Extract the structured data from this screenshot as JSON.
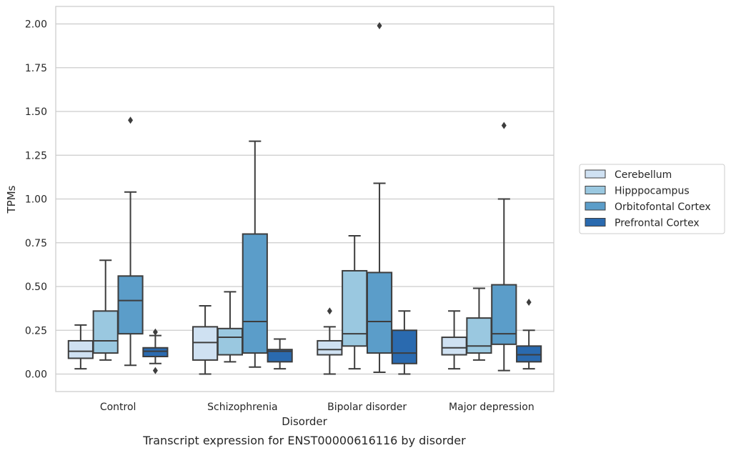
{
  "caption": "Transcript expression for ENST00000616116 by disorder",
  "chart_data": {
    "type": "box",
    "xlabel": "Disorder",
    "ylabel": "TPMs",
    "ylim": [
      -0.1,
      2.1
    ],
    "yticks": [
      "0.00",
      "0.25",
      "0.50",
      "0.75",
      "1.00",
      "1.25",
      "1.50",
      "1.75",
      "2.00"
    ],
    "ytick_values": [
      0,
      0.25,
      0.5,
      0.75,
      1.0,
      1.25,
      1.5,
      1.75,
      2.0
    ],
    "grid": true,
    "legend_position": "right-center",
    "categories": [
      "Control",
      "Schizophrenia",
      "Bipolar disorder",
      "Major depression"
    ],
    "series": [
      {
        "name": "Cerebellum",
        "color": "#cfe1f2",
        "boxes": [
          {
            "whislo": 0.03,
            "q1": 0.09,
            "med": 0.13,
            "q3": 0.19,
            "whishi": 0.28,
            "fliers": []
          },
          {
            "whislo": 0.0,
            "q1": 0.08,
            "med": 0.18,
            "q3": 0.27,
            "whishi": 0.39,
            "fliers": []
          },
          {
            "whislo": 0.0,
            "q1": 0.11,
            "med": 0.14,
            "q3": 0.19,
            "whishi": 0.27,
            "fliers": [
              0.36
            ]
          },
          {
            "whislo": 0.03,
            "q1": 0.11,
            "med": 0.15,
            "q3": 0.21,
            "whishi": 0.36,
            "fliers": []
          }
        ]
      },
      {
        "name": "Hipppocampus",
        "color": "#9ac8e0",
        "boxes": [
          {
            "whislo": 0.08,
            "q1": 0.12,
            "med": 0.19,
            "q3": 0.36,
            "whishi": 0.65,
            "fliers": []
          },
          {
            "whislo": 0.07,
            "q1": 0.11,
            "med": 0.21,
            "q3": 0.26,
            "whishi": 0.47,
            "fliers": []
          },
          {
            "whislo": 0.03,
            "q1": 0.16,
            "med": 0.23,
            "q3": 0.59,
            "whishi": 0.79,
            "fliers": []
          },
          {
            "whislo": 0.08,
            "q1": 0.12,
            "med": 0.16,
            "q3": 0.32,
            "whishi": 0.49,
            "fliers": []
          }
        ]
      },
      {
        "name": "Orbitofontal Cortex",
        "color": "#5b9dc9",
        "boxes": [
          {
            "whislo": 0.05,
            "q1": 0.23,
            "med": 0.42,
            "q3": 0.56,
            "whishi": 1.04,
            "fliers": [
              1.45
            ]
          },
          {
            "whislo": 0.04,
            "q1": 0.12,
            "med": 0.3,
            "q3": 0.8,
            "whishi": 1.33,
            "fliers": []
          },
          {
            "whislo": 0.01,
            "q1": 0.12,
            "med": 0.3,
            "q3": 0.58,
            "whishi": 1.09,
            "fliers": [
              1.99
            ]
          },
          {
            "whislo": 0.02,
            "q1": 0.17,
            "med": 0.23,
            "q3": 0.51,
            "whishi": 1.0,
            "fliers": [
              1.42
            ]
          }
        ]
      },
      {
        "name": "Prefrontal Cortex",
        "color": "#2a6aaf",
        "boxes": [
          {
            "whislo": 0.06,
            "q1": 0.1,
            "med": 0.13,
            "q3": 0.15,
            "whishi": 0.22,
            "fliers": [
              0.24,
              0.02
            ]
          },
          {
            "whislo": 0.03,
            "q1": 0.07,
            "med": 0.13,
            "q3": 0.14,
            "whishi": 0.2,
            "fliers": []
          },
          {
            "whislo": 0.0,
            "q1": 0.06,
            "med": 0.12,
            "q3": 0.25,
            "whishi": 0.36,
            "fliers": []
          },
          {
            "whislo": 0.03,
            "q1": 0.07,
            "med": 0.11,
            "q3": 0.16,
            "whishi": 0.25,
            "fliers": [
              0.41
            ]
          }
        ]
      }
    ]
  }
}
